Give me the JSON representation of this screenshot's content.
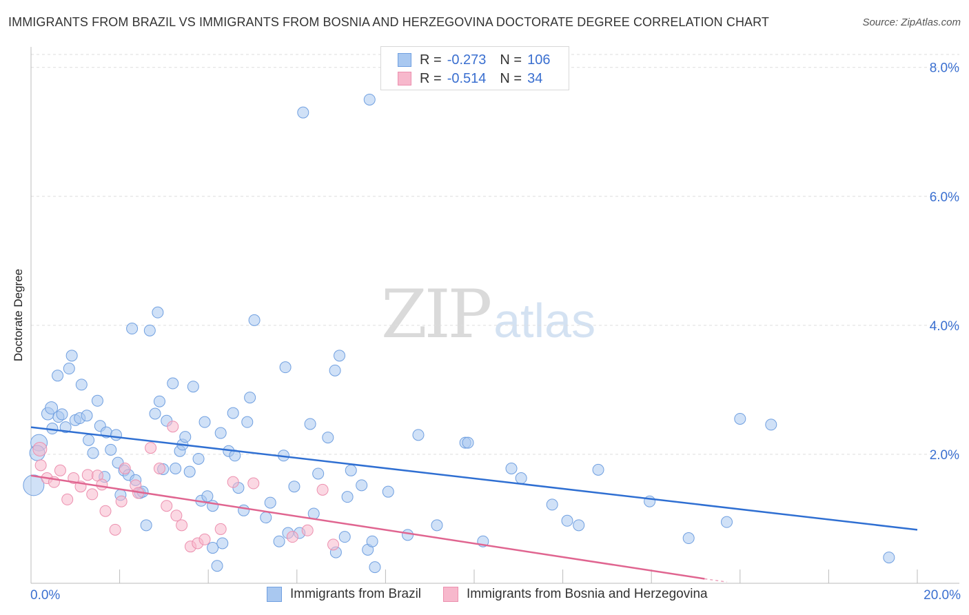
{
  "title": "IMMIGRANTS FROM BRAZIL VS IMMIGRANTS FROM BOSNIA AND HERZEGOVINA DOCTORATE DEGREE CORRELATION CHART",
  "source": "Source: ZipAtlas.com",
  "watermark": {
    "zip": "ZIP",
    "atlas": "atlas"
  },
  "legend_top": [
    {
      "r_label": "R =",
      "r_value": "-0.273",
      "n_label": "N =",
      "n_value": "106"
    },
    {
      "r_label": "R =",
      "r_value": "-0.514",
      "n_label": "N =",
      "n_value": "34"
    }
  ],
  "colors": {
    "brazil_fill": "#a9c8f0",
    "brazil_stroke": "#6f9fe0",
    "brazil_line": "#2f6fd2",
    "bosnia_fill": "#f7b8cc",
    "bosnia_stroke": "#ec8fae",
    "bosnia_line": "#e06590",
    "axis_label": "#3a6fd0",
    "grid": "#dddddd"
  },
  "chart_data": {
    "type": "scatter",
    "title": "IMMIGRANTS FROM BRAZIL VS IMMIGRANTS FROM BOSNIA AND HERZEGOVINA DOCTORATE DEGREE CORRELATION CHART",
    "xlabel": "",
    "ylabel": "Doctorate Degree",
    "xlim": [
      0,
      20
    ],
    "ylim": [
      0,
      8.2
    ],
    "x_tick_labels": [
      "0.0%",
      "20.0%"
    ],
    "y_ticks": [
      2,
      4,
      6,
      8
    ],
    "y_tick_labels": [
      "2.0%",
      "4.0%",
      "6.0%",
      "8.0%"
    ],
    "grid": true,
    "legend_position": "bottom",
    "series": [
      {
        "name": "Immigrants from Brazil",
        "R": -0.273,
        "N": 106,
        "trend": {
          "x": [
            0,
            20
          ],
          "y": [
            2.42,
            0.83
          ]
        },
        "points": [
          [
            0.06,
            1.52,
            1.5
          ],
          [
            0.18,
            2.18,
            1.2
          ],
          [
            0.14,
            2.02,
            1.1
          ],
          [
            0.38,
            2.63,
            0.9
          ],
          [
            0.46,
            2.72,
            0.9
          ],
          [
            0.48,
            2.4,
            0.8
          ],
          [
            0.62,
            2.58,
            0.8
          ],
          [
            0.6,
            3.22,
            0.8
          ],
          [
            0.7,
            2.62,
            0.8
          ],
          [
            0.78,
            2.42,
            0.8
          ],
          [
            0.86,
            3.33,
            0.8
          ],
          [
            0.92,
            3.53,
            0.8
          ],
          [
            1.0,
            2.53,
            0.8
          ],
          [
            1.1,
            2.56,
            0.8
          ],
          [
            1.14,
            3.08,
            0.8
          ],
          [
            1.26,
            2.6,
            0.8
          ],
          [
            1.3,
            2.22,
            0.8
          ],
          [
            1.4,
            2.02,
            0.8
          ],
          [
            1.5,
            2.83,
            0.8
          ],
          [
            1.56,
            2.44,
            0.8
          ],
          [
            1.66,
            1.65,
            0.8
          ],
          [
            1.7,
            2.34,
            0.8
          ],
          [
            1.8,
            2.07,
            0.8
          ],
          [
            1.92,
            2.3,
            0.8
          ],
          [
            1.96,
            1.87,
            0.8
          ],
          [
            2.02,
            1.37,
            0.8
          ],
          [
            2.1,
            1.75,
            0.8
          ],
          [
            2.2,
            1.68,
            0.8
          ],
          [
            2.28,
            3.95,
            0.8
          ],
          [
            2.36,
            1.6,
            0.8
          ],
          [
            2.46,
            1.4,
            0.8
          ],
          [
            2.52,
            1.42,
            0.8
          ],
          [
            2.6,
            0.9,
            0.8
          ],
          [
            2.68,
            3.92,
            0.8
          ],
          [
            2.8,
            2.63,
            0.8
          ],
          [
            2.86,
            4.2,
            0.8
          ],
          [
            2.9,
            2.82,
            0.8
          ],
          [
            2.98,
            1.77,
            0.8
          ],
          [
            3.06,
            2.52,
            0.8
          ],
          [
            3.2,
            3.1,
            0.8
          ],
          [
            3.26,
            1.78,
            0.8
          ],
          [
            3.36,
            2.05,
            0.8
          ],
          [
            3.42,
            2.15,
            0.8
          ],
          [
            3.48,
            2.27,
            0.8
          ],
          [
            3.58,
            1.73,
            0.8
          ],
          [
            3.66,
            3.05,
            0.8
          ],
          [
            3.78,
            1.93,
            0.8
          ],
          [
            3.84,
            1.28,
            0.8
          ],
          [
            3.92,
            2.5,
            0.8
          ],
          [
            3.98,
            1.35,
            0.8
          ],
          [
            4.1,
            1.2,
            0.8
          ],
          [
            4.1,
            0.55,
            0.8
          ],
          [
            4.2,
            0.27,
            0.8
          ],
          [
            4.28,
            2.33,
            0.8
          ],
          [
            4.32,
            0.62,
            0.8
          ],
          [
            4.46,
            2.05,
            0.8
          ],
          [
            4.56,
            2.64,
            0.8
          ],
          [
            4.6,
            1.98,
            0.8
          ],
          [
            4.68,
            1.48,
            0.8
          ],
          [
            4.8,
            1.13,
            0.8
          ],
          [
            4.88,
            2.5,
            0.8
          ],
          [
            4.94,
            2.88,
            0.8
          ],
          [
            5.04,
            4.08,
            0.8
          ],
          [
            5.3,
            1.02,
            0.8
          ],
          [
            5.4,
            1.25,
            0.8
          ],
          [
            5.6,
            0.65,
            0.8
          ],
          [
            5.7,
            1.98,
            0.8
          ],
          [
            5.74,
            3.35,
            0.8
          ],
          [
            5.8,
            0.78,
            0.8
          ],
          [
            5.94,
            1.5,
            0.8
          ],
          [
            6.06,
            0.78,
            0.8
          ],
          [
            6.14,
            7.3,
            0.8
          ],
          [
            6.3,
            2.47,
            0.8
          ],
          [
            6.38,
            1.08,
            0.8
          ],
          [
            6.48,
            1.7,
            0.8
          ],
          [
            6.7,
            2.26,
            0.8
          ],
          [
            6.86,
            3.3,
            0.8
          ],
          [
            6.88,
            0.48,
            0.8
          ],
          [
            6.96,
            3.53,
            0.8
          ],
          [
            7.08,
            0.72,
            0.8
          ],
          [
            7.14,
            1.34,
            0.8
          ],
          [
            7.22,
            1.75,
            0.8
          ],
          [
            7.46,
            1.52,
            0.8
          ],
          [
            7.6,
            0.52,
            0.8
          ],
          [
            7.64,
            7.5,
            0.8
          ],
          [
            7.7,
            0.65,
            0.8
          ],
          [
            7.76,
            0.25,
            0.8
          ],
          [
            8.06,
            1.42,
            0.8
          ],
          [
            8.5,
            0.75,
            0.8
          ],
          [
            8.74,
            2.3,
            0.8
          ],
          [
            9.16,
            0.9,
            0.8
          ],
          [
            9.8,
            2.18,
            0.8
          ],
          [
            9.86,
            2.18,
            0.8
          ],
          [
            10.2,
            0.65,
            0.8
          ],
          [
            10.84,
            1.78,
            0.8
          ],
          [
            11.06,
            1.63,
            0.8
          ],
          [
            11.76,
            1.22,
            0.8
          ],
          [
            12.1,
            0.97,
            0.8
          ],
          [
            12.36,
            0.9,
            0.8
          ],
          [
            12.8,
            1.76,
            0.8
          ],
          [
            13.96,
            1.27,
            0.8
          ],
          [
            14.84,
            0.7,
            0.8
          ],
          [
            15.7,
            0.95,
            0.8
          ],
          [
            16.0,
            2.55,
            0.8
          ],
          [
            16.7,
            2.46,
            0.8
          ],
          [
            19.36,
            0.4,
            0.8
          ]
        ]
      },
      {
        "name": "Immigrants from Bosnia and Herzegovina",
        "R": -0.514,
        "N": 34,
        "trend": {
          "x": [
            0,
            15.2
          ],
          "y": [
            1.67,
            0.07
          ],
          "dashed_extension": {
            "x": [
              15.2,
              15.7
            ],
            "y": [
              0.07,
              0.02
            ]
          }
        },
        "points": [
          [
            0.2,
            2.08,
            1.0
          ],
          [
            0.22,
            1.83,
            0.8
          ],
          [
            0.36,
            1.63,
            0.8
          ],
          [
            0.52,
            1.57,
            0.8
          ],
          [
            0.66,
            1.75,
            0.8
          ],
          [
            0.82,
            1.3,
            0.8
          ],
          [
            0.96,
            1.63,
            0.8
          ],
          [
            1.12,
            1.5,
            0.8
          ],
          [
            1.28,
            1.68,
            0.8
          ],
          [
            1.38,
            1.38,
            0.8
          ],
          [
            1.5,
            1.67,
            0.8
          ],
          [
            1.6,
            1.53,
            0.8
          ],
          [
            1.68,
            1.12,
            0.8
          ],
          [
            1.9,
            0.83,
            0.8
          ],
          [
            2.04,
            1.27,
            0.8
          ],
          [
            2.12,
            1.78,
            0.8
          ],
          [
            2.36,
            1.52,
            0.8
          ],
          [
            2.42,
            1.4,
            0.8
          ],
          [
            2.7,
            2.1,
            0.8
          ],
          [
            2.9,
            1.78,
            0.8
          ],
          [
            3.06,
            1.2,
            0.8
          ],
          [
            3.2,
            2.43,
            0.8
          ],
          [
            3.28,
            1.05,
            0.8
          ],
          [
            3.4,
            0.9,
            0.8
          ],
          [
            3.6,
            0.57,
            0.8
          ],
          [
            3.76,
            0.62,
            0.8
          ],
          [
            3.92,
            0.68,
            0.8
          ],
          [
            4.28,
            0.84,
            0.8
          ],
          [
            4.56,
            1.57,
            0.8
          ],
          [
            5.02,
            1.55,
            0.8
          ],
          [
            5.9,
            0.72,
            0.8
          ],
          [
            6.24,
            0.82,
            0.8
          ],
          [
            6.58,
            1.45,
            0.8
          ],
          [
            6.82,
            0.6,
            0.8
          ]
        ]
      }
    ]
  },
  "legend_bottom": [
    {
      "label": "Immigrants from Brazil"
    },
    {
      "label": "Immigrants from Bosnia and Herzegovina"
    }
  ]
}
